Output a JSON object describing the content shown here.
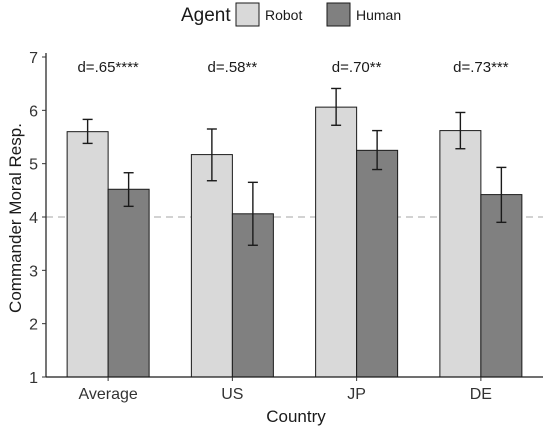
{
  "chart_data": {
    "type": "bar",
    "xlabel": "Country",
    "ylabel": "Commander Moral Resp.",
    "ylim": [
      1,
      7
    ],
    "yticks": [
      1,
      2,
      3,
      4,
      5,
      6,
      7
    ],
    "reference_line": 4,
    "legend": {
      "title": "Agent",
      "position": "top"
    },
    "categories": [
      "Average",
      "US",
      "JP",
      "DE"
    ],
    "series": [
      {
        "name": "Robot",
        "color": "#d9d9d9",
        "values": [
          5.6,
          5.17,
          6.06,
          5.62
        ],
        "err_low": [
          5.38,
          4.68,
          5.72,
          5.28
        ],
        "err_high": [
          5.83,
          5.65,
          6.41,
          5.96
        ]
      },
      {
        "name": "Human",
        "color": "#808080",
        "values": [
          4.52,
          4.06,
          5.25,
          4.42
        ],
        "err_low": [
          4.2,
          3.47,
          4.89,
          3.9
        ],
        "err_high": [
          4.83,
          4.65,
          5.62,
          4.93
        ]
      }
    ],
    "annotations": [
      "d=.65****",
      "d=.58**",
      "d=.70**",
      "d=.73***"
    ]
  }
}
